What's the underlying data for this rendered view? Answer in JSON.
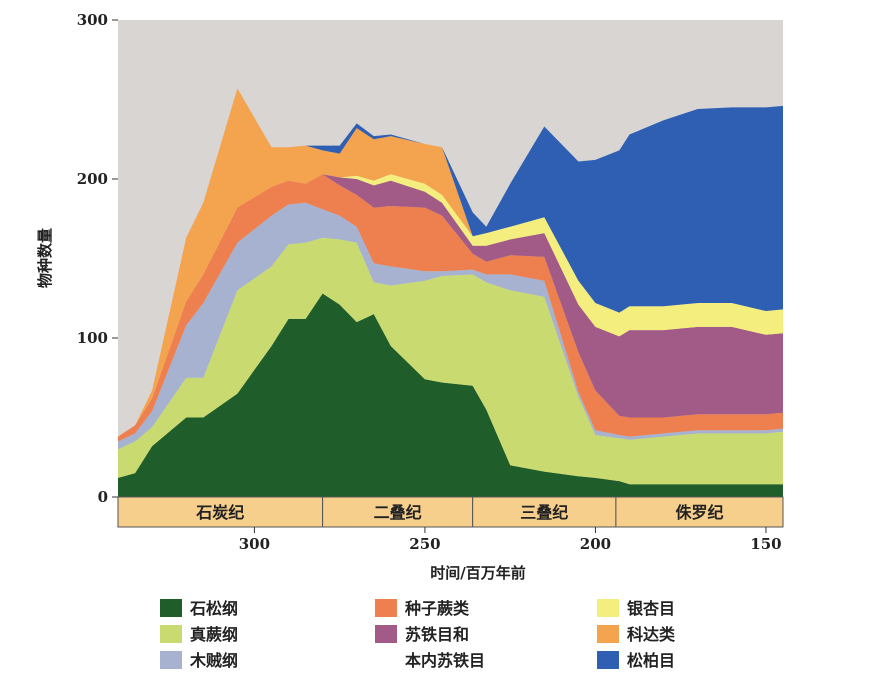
{
  "chart_data": {
    "type": "area",
    "stacked": true,
    "xlabel": "时间/百万年前",
    "ylabel": "物种数量",
    "xlim": [
      340,
      145
    ],
    "ylim": [
      0,
      300
    ],
    "x_ticks": [
      300,
      250,
      200,
      150
    ],
    "y_ticks": [
      0,
      100,
      200,
      300
    ],
    "grid": false,
    "legend_position": "bottom",
    "background_color": "#d9d5d3",
    "periods": [
      {
        "name": "石炭纪",
        "start": 340,
        "end": 280
      },
      {
        "name": "二叠纪",
        "start": 280,
        "end": 236
      },
      {
        "name": "三叠纪",
        "start": 236,
        "end": 194
      },
      {
        "name": "侏罗纪",
        "start": 194,
        "end": 145
      }
    ],
    "period_band_color": "#f6cf8c",
    "x": [
      340,
      335,
      330,
      320,
      315,
      305,
      295,
      290,
      285,
      280,
      275,
      270,
      265,
      260,
      250,
      245,
      236,
      232,
      225,
      215,
      205,
      200,
      193,
      190,
      180,
      170,
      160,
      150,
      145
    ],
    "series": [
      {
        "name": "石松纲",
        "color": "#1f5e2a",
        "values": [
          12,
          15,
          32,
          50,
          50,
          65,
          95,
          112,
          112,
          128,
          121,
          110,
          115,
          95,
          74,
          72,
          70,
          55,
          20,
          16,
          13,
          12,
          10,
          8,
          8,
          8,
          8,
          8,
          8
        ]
      },
      {
        "name": "真蕨纲",
        "color": "#c9db70",
        "values": [
          18,
          20,
          12,
          25,
          25,
          65,
          50,
          47,
          48,
          35,
          41,
          50,
          20,
          38,
          62,
          67,
          70,
          80,
          110,
          110,
          50,
          27,
          27,
          28,
          30,
          32,
          32,
          32,
          33
        ]
      },
      {
        "name": "木贼纲",
        "color": "#a6b2cf",
        "values": [
          5,
          5,
          10,
          33,
          47,
          30,
          32,
          25,
          25,
          18,
          15,
          10,
          12,
          12,
          6,
          3,
          3,
          5,
          10,
          10,
          3,
          3,
          2,
          2,
          2,
          2,
          2,
          2,
          2
        ]
      },
      {
        "name": "种子蕨类",
        "color": "#ee7f4f",
        "values": [
          3,
          5,
          8,
          15,
          18,
          22,
          18,
          15,
          12,
          22,
          19,
          20,
          35,
          38,
          40,
          35,
          10,
          8,
          12,
          15,
          25,
          25,
          12,
          12,
          10,
          10,
          10,
          10,
          10
        ]
      },
      {
        "name": "苏铁目和\n本内苏铁目",
        "color": "#a25a86",
        "values": [
          0,
          0,
          0,
          0,
          0,
          0,
          0,
          0,
          0,
          0,
          5,
          10,
          14,
          16,
          10,
          8,
          5,
          10,
          10,
          15,
          30,
          40,
          50,
          55,
          55,
          55,
          55,
          50,
          50
        ]
      },
      {
        "name": "银杏目",
        "color": "#f4ee7e",
        "values": [
          0,
          0,
          0,
          0,
          0,
          0,
          0,
          0,
          0,
          0,
          0,
          2,
          3,
          4,
          5,
          5,
          6,
          8,
          8,
          10,
          15,
          15,
          15,
          15,
          15,
          15,
          15,
          15,
          15
        ]
      },
      {
        "name": "科达类",
        "color": "#f4a34e",
        "values": [
          0,
          0,
          5,
          40,
          45,
          75,
          25,
          21,
          24,
          15,
          15,
          30,
          26,
          24,
          25,
          30,
          0,
          0,
          0,
          0,
          0,
          0,
          0,
          0,
          0,
          0,
          0,
          0,
          0
        ]
      },
      {
        "name": "松柏目",
        "color": "#2f5fb3",
        "values": [
          0,
          0,
          0,
          0,
          0,
          0,
          0,
          0,
          0,
          3,
          5,
          3,
          2,
          1,
          0,
          0,
          15,
          4,
          27,
          57,
          75,
          90,
          102,
          108,
          117,
          122,
          123,
          128,
          128
        ]
      }
    ]
  }
}
